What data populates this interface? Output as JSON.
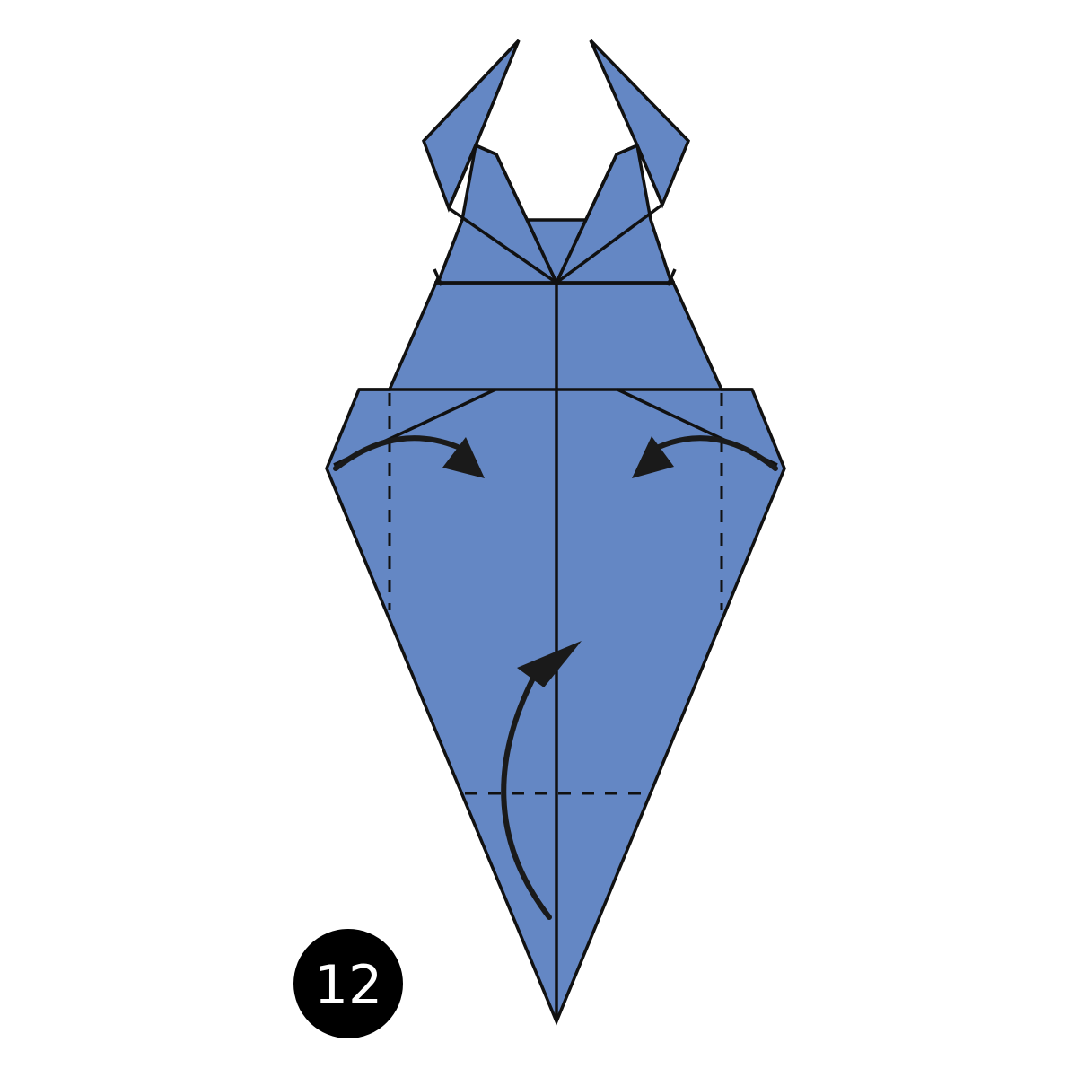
{
  "step": {
    "number": "12"
  },
  "colors": {
    "paper": "#6487c4",
    "line": "#111111",
    "arrow": "#1a1a1a",
    "badge_bg": "#000000",
    "badge_text": "#ffffff",
    "background": "#ffffff"
  },
  "folds": [
    {
      "kind": "valley-fold-arrow",
      "direction": "left-flap-inward"
    },
    {
      "kind": "valley-fold-arrow",
      "direction": "right-flap-inward"
    },
    {
      "kind": "valley-fold-arrow",
      "direction": "bottom-tip-upward"
    }
  ]
}
